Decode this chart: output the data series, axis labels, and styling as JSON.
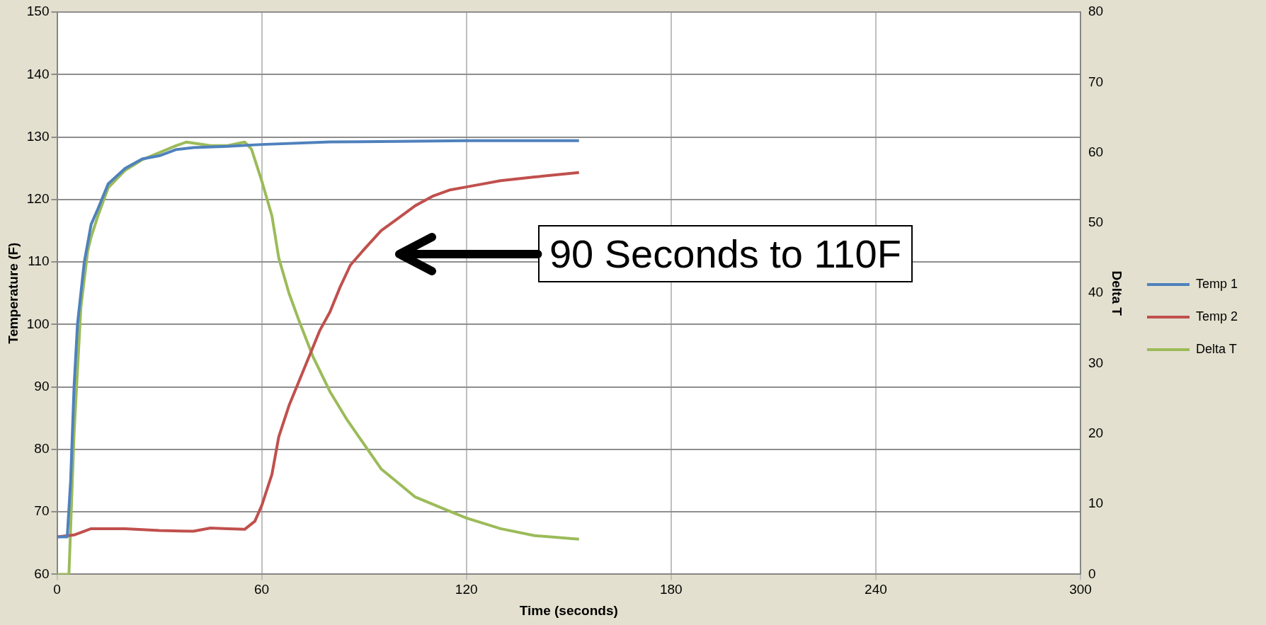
{
  "chart_data": {
    "type": "line",
    "xlabel": "Time (seconds)",
    "ylabel": "Temperature (F)",
    "y2label": "Delta T",
    "xlim": [
      0,
      300
    ],
    "xticks": [
      0,
      60,
      120,
      180,
      240,
      300
    ],
    "ylim": [
      60,
      150
    ],
    "yticks": [
      60,
      70,
      80,
      90,
      100,
      110,
      120,
      130,
      140,
      150
    ],
    "y2lim": [
      0,
      80
    ],
    "y2ticks": [
      0,
      10,
      20,
      30,
      40,
      50,
      60,
      70,
      80
    ],
    "grid": true,
    "legend": "right",
    "marker": "none",
    "line_style": "solid",
    "annotations": [
      "90 Seconds to 110F"
    ],
    "series": [
      {
        "name": "Temp 1",
        "color": "#4f81bd",
        "x": [
          0,
          3,
          4,
          5,
          6,
          8,
          10,
          12,
          15,
          20,
          25,
          30,
          35,
          40,
          50,
          60,
          80,
          100,
          120,
          153
        ],
        "values": [
          66,
          66,
          75,
          90,
          100,
          110,
          116,
          118.5,
          122.5,
          125,
          126.5,
          127,
          128,
          128.3,
          128.5,
          128.8,
          129.2,
          129.3,
          129.4,
          129.4
        ]
      },
      {
        "name": "Temp 2",
        "color": "#c0504d",
        "x": [
          0,
          5,
          10,
          20,
          30,
          40,
          45,
          50,
          55,
          58,
          60,
          63,
          65,
          68,
          71,
          74,
          77,
          80,
          83,
          86,
          90,
          95,
          100,
          105,
          110,
          115,
          120,
          130,
          140,
          153
        ],
        "values": [
          66,
          66.3,
          67.3,
          67.3,
          67,
          66.9,
          67.4,
          67.3,
          67.2,
          68.5,
          71,
          76,
          82,
          87,
          91,
          95,
          99,
          102,
          106,
          109.5,
          112,
          115,
          117,
          119,
          120.5,
          121.5,
          122,
          123,
          123.6,
          124.3
        ]
      },
      {
        "name": "Delta T",
        "color": "#9bbb59",
        "axis": "y2",
        "x": [
          0,
          3.5,
          5,
          7,
          9,
          10,
          12,
          15,
          20,
          25,
          30,
          35,
          38,
          45,
          50,
          55,
          57,
          60,
          63,
          65,
          68,
          71,
          75,
          80,
          85,
          90,
          95,
          100,
          105,
          110,
          115,
          120,
          130,
          140,
          153
        ],
        "values": [
          0,
          0,
          20,
          38,
          46,
          48,
          51,
          55,
          57.5,
          59,
          60,
          61,
          61.5,
          61,
          61,
          61.5,
          60.5,
          56,
          51,
          45,
          40,
          36,
          31,
          26,
          22,
          18.5,
          15,
          13,
          11,
          10,
          9,
          8,
          6.5,
          5.5,
          5
        ]
      }
    ]
  }
}
